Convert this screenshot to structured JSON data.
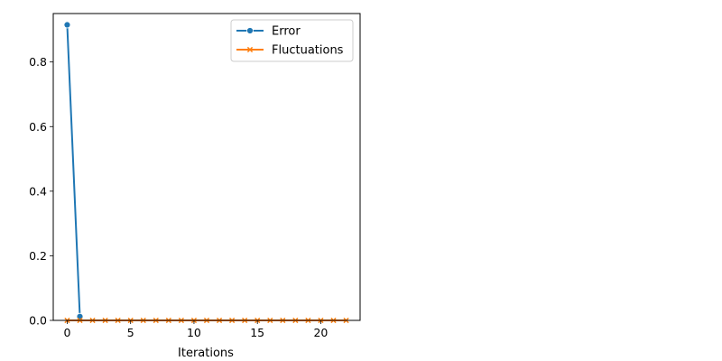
{
  "chart_data": {
    "type": "line",
    "title": "",
    "xlabel": "Iterations",
    "ylabel": "",
    "xlim": [
      -1.1,
      23.1
    ],
    "ylim": [
      0,
      0.95
    ],
    "x_ticks": [
      0,
      5,
      10,
      15,
      20
    ],
    "y_ticks": [
      0.0,
      0.2,
      0.4,
      0.6,
      0.8
    ],
    "y_tick_labels": [
      "0.0",
      "0.2",
      "0.4",
      "0.6",
      "0.8"
    ],
    "grid": false,
    "legend_position": "top-right",
    "series": [
      {
        "name": "Error",
        "color": "#1f77b4",
        "marker": "circle",
        "x": [
          0,
          1
        ],
        "values": [
          0.915,
          0.012
        ]
      },
      {
        "name": "Fluctuations",
        "color": "#ff7f0e",
        "marker": "x",
        "x": [
          0,
          1,
          2,
          3,
          4,
          5,
          6,
          7,
          8,
          9,
          10,
          11,
          12,
          13,
          14,
          15,
          16,
          17,
          18,
          19,
          20,
          21,
          22
        ],
        "values": [
          0,
          0,
          0,
          0,
          0,
          0,
          0,
          0,
          0,
          0,
          0,
          0,
          0,
          0,
          0,
          0,
          0,
          0,
          0,
          0,
          0,
          0,
          0
        ]
      }
    ]
  }
}
